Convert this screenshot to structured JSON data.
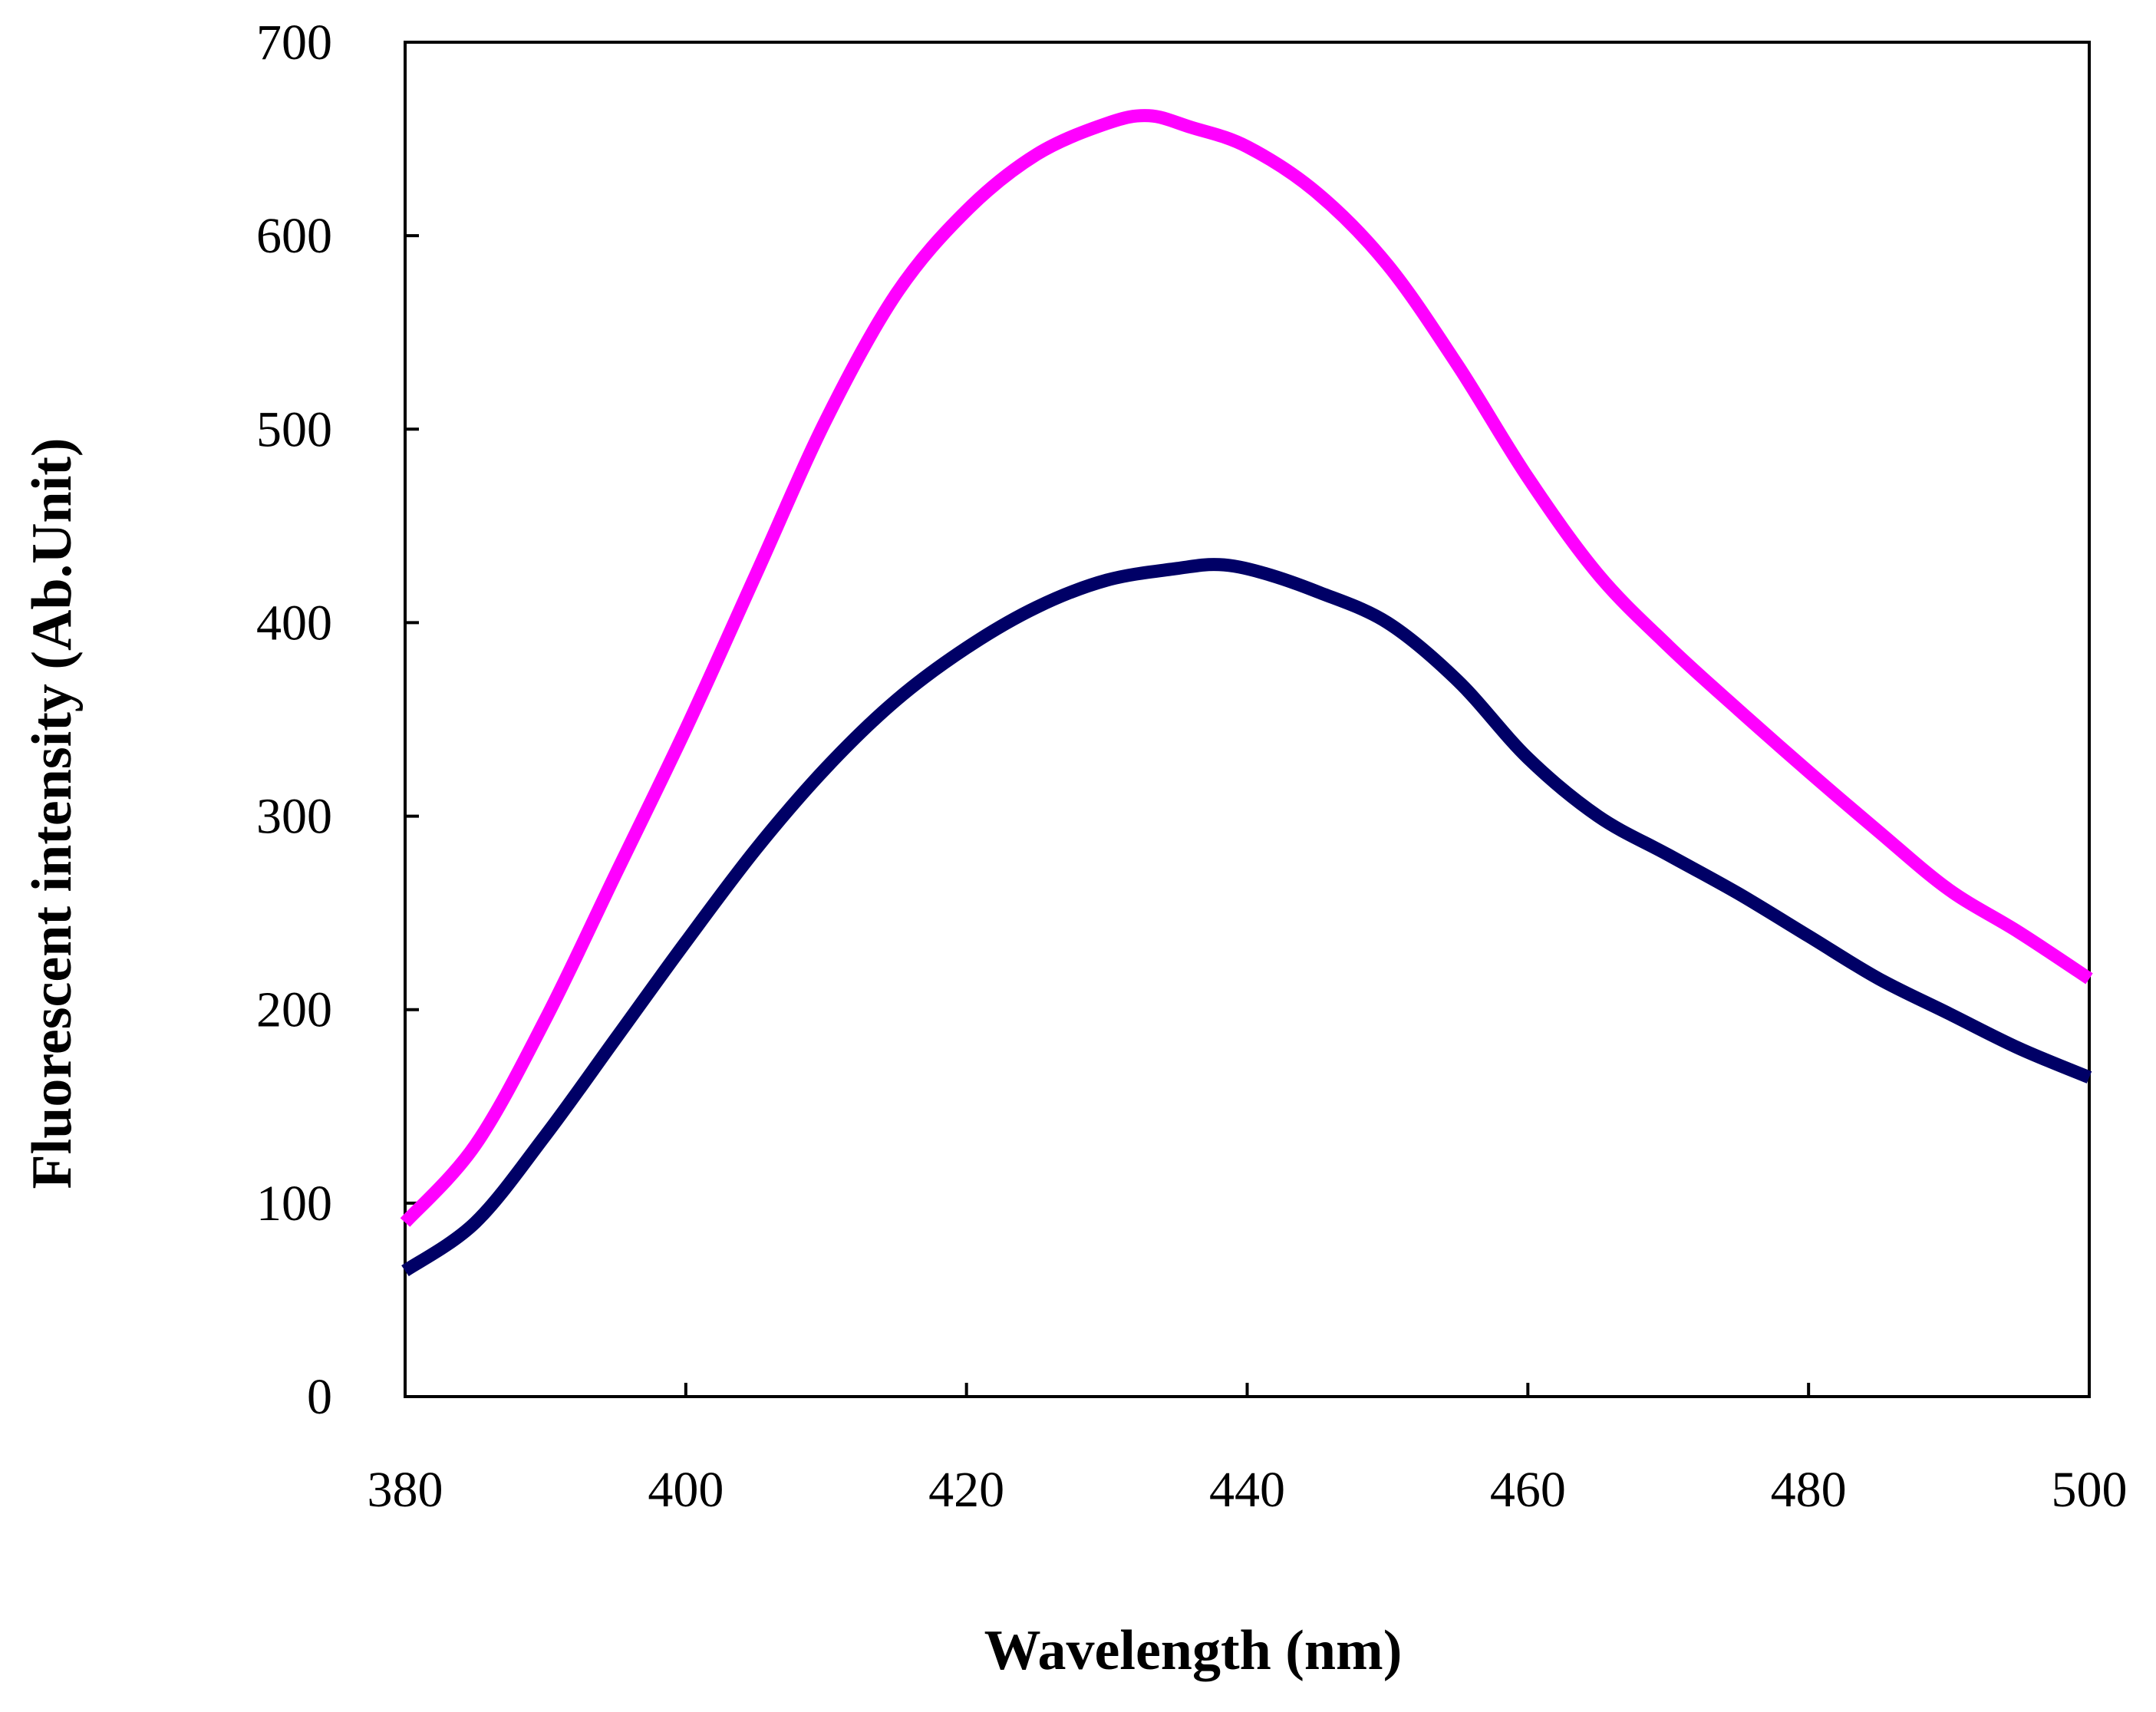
{
  "chart_data": {
    "type": "line",
    "title": "",
    "xlabel": "Wavelength (nm)",
    "ylabel": "Fluorescent intensity (Ab.Unit)",
    "xlim": [
      380,
      500
    ],
    "ylim": [
      0,
      700
    ],
    "xticks": [
      380,
      400,
      420,
      440,
      460,
      480,
      500
    ],
    "yticks": [
      0,
      100,
      200,
      300,
      400,
      500,
      600,
      700
    ],
    "grid": false,
    "legend": "none",
    "series": [
      {
        "name": "magenta-curve",
        "color": "#ff00ff",
        "x": [
          380,
          385,
          390,
          395,
          400,
          405,
          410,
          415,
          420,
          425,
          430,
          433,
          436,
          440,
          445,
          450,
          455,
          460,
          465,
          470,
          475,
          480,
          485,
          490,
          495,
          500
        ],
        "y": [
          90,
          130,
          195,
          270,
          345,
          425,
          505,
          570,
          613,
          642,
          658,
          662,
          656,
          646,
          622,
          585,
          533,
          475,
          425,
          388,
          355,
          323,
          292,
          262,
          240,
          216
        ]
      },
      {
        "name": "navy-curve",
        "color": "#000066",
        "x": [
          380,
          385,
          390,
          395,
          400,
          405,
          410,
          415,
          420,
          425,
          430,
          435,
          438,
          441,
          445,
          450,
          455,
          460,
          465,
          470,
          475,
          480,
          485,
          490,
          495,
          500
        ],
        "y": [
          65,
          90,
          135,
          185,
          235,
          283,
          325,
          360,
          387,
          408,
          422,
          428,
          430,
          426,
          416,
          400,
          370,
          330,
          300,
          280,
          260,
          238,
          216,
          198,
          180,
          165
        ]
      }
    ]
  }
}
